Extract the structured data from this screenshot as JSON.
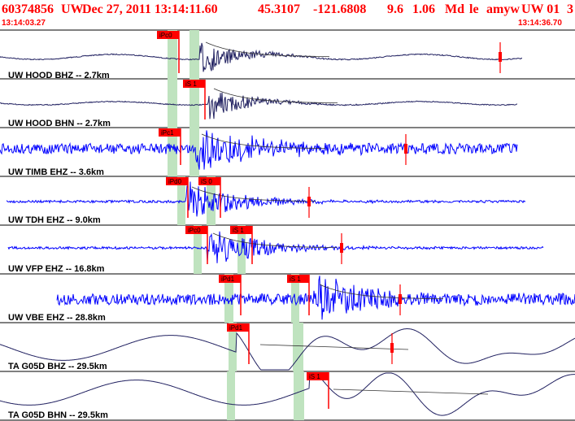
{
  "header": {
    "event_id": "60374856",
    "network": "UW",
    "datetime": "Dec 27, 2011 13:14:11.60",
    "lat": "45.3107",
    "lon": "-121.6808",
    "depth": "9.6",
    "magnitude": "1.06",
    "mag_type": "Md",
    "event_type": "le",
    "analyst": "amyw",
    "review": "UW 01",
    "trailing": "3",
    "start_time": "13:14:03.27",
    "end_time": "13:14:36.70"
  },
  "colors": {
    "header_red": "#ff0000",
    "trace_blue": "#0000ff",
    "trace_dark": "#202060",
    "pick_band": "#bfe3bf",
    "coda_line": "#333333",
    "pick_red": "#ff0000"
  },
  "traces": [
    {
      "label": "UW HOOD BHZ -- 2.7km",
      "color": "dark",
      "kind": "smooth",
      "picks": [
        "iPc0"
      ],
      "bands": 2,
      "marker": true
    },
    {
      "label": "UW HOOD BHN -- 2.7km",
      "color": "dark",
      "kind": "smooth",
      "picks": [
        "iS 1"
      ],
      "bands": 2,
      "marker": false
    },
    {
      "label": "UW TIMB EHZ -- 3.6km",
      "color": "blue",
      "kind": "noise",
      "picks": [
        "iPc1"
      ],
      "bands": 2,
      "marker": true
    },
    {
      "label": "UW TDH EHZ -- 9.0km",
      "color": "blue",
      "kind": "quiet",
      "picks": [
        "iPd0",
        "iS 0"
      ],
      "bands": 2,
      "marker": true
    },
    {
      "label": "UW VFP EHZ -- 16.8km",
      "color": "blue",
      "kind": "quiet",
      "picks": [
        "iPc0",
        "iS 1"
      ],
      "bands": 2,
      "marker": true
    },
    {
      "label": "UW VBE EHZ -- 28.8km",
      "color": "blue",
      "kind": "noise",
      "picks": [
        "iPd1",
        "iS 1"
      ],
      "bands": 2,
      "marker": true
    },
    {
      "label": "TA G05D BHZ -- 29.5km",
      "color": "dark",
      "kind": "wave",
      "picks": [
        "iPd1"
      ],
      "bands": 2,
      "marker": true
    },
    {
      "label": "TA G05D BHN -- 29.5km",
      "color": "dark",
      "kind": "wave",
      "picks": [
        "iS 1"
      ],
      "bands": 2,
      "marker": false
    }
  ]
}
